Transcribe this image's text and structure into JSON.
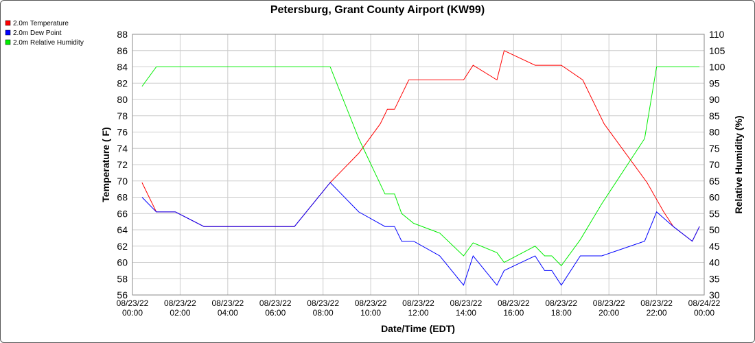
{
  "chart_data": {
    "type": "line",
    "title": "Petersburg, Grant County Airport (KW99)",
    "xlabel": "Date/Time (EDT)",
    "ylabel": "Temperature ( F)",
    "y2label": "Relative Humidity (%)",
    "xlim": [
      0,
      24
    ],
    "ylim": [
      56,
      88
    ],
    "y2lim": [
      30,
      110
    ],
    "grid": true,
    "legend_position": "top-left",
    "x_ticks": [
      {
        "x": 0,
        "date": "08/23/22",
        "time": "00:00"
      },
      {
        "x": 2,
        "date": "08/23/22",
        "time": "02:00"
      },
      {
        "x": 4,
        "date": "08/23/22",
        "time": "04:00"
      },
      {
        "x": 6,
        "date": "08/23/22",
        "time": "06:00"
      },
      {
        "x": 8,
        "date": "08/23/22",
        "time": "08:00"
      },
      {
        "x": 10,
        "date": "08/23/22",
        "time": "10:00"
      },
      {
        "x": 12,
        "date": "08/23/22",
        "time": "12:00"
      },
      {
        "x": 14,
        "date": "08/23/22",
        "time": "14:00"
      },
      {
        "x": 16,
        "date": "08/23/22",
        "time": "16:00"
      },
      {
        "x": 18,
        "date": "08/23/22",
        "time": "18:00"
      },
      {
        "x": 20,
        "date": "08/23/22",
        "time": "20:00"
      },
      {
        "x": 22,
        "date": "08/23/22",
        "time": "22:00"
      },
      {
        "x": 24,
        "date": "08/24/22",
        "time": "00:00"
      }
    ],
    "y_ticks": [
      56,
      58,
      60,
      62,
      64,
      66,
      68,
      70,
      72,
      74,
      76,
      78,
      80,
      82,
      84,
      86,
      88
    ],
    "y2_ticks": [
      30,
      35,
      40,
      45,
      50,
      55,
      60,
      65,
      70,
      75,
      80,
      85,
      90,
      95,
      100,
      105,
      110
    ],
    "series": [
      {
        "name": "2.0m Temperature",
        "color": "#ff0000",
        "axis": "left",
        "x": [
          0.4,
          1.0,
          1.8,
          3.0,
          6.8,
          8.3,
          9.5,
          10.4,
          10.7,
          11.0,
          11.6,
          13.9,
          14.3,
          15.3,
          15.6,
          16.9,
          18.0,
          18.9,
          19.8,
          20.7,
          21.6,
          22.3,
          22.7,
          23.5,
          23.8
        ],
        "y": [
          69.8,
          66.2,
          66.2,
          64.4,
          64.4,
          69.8,
          73.4,
          77.0,
          78.8,
          78.8,
          82.4,
          82.4,
          84.2,
          82.4,
          86.0,
          84.2,
          84.2,
          82.4,
          77.0,
          73.4,
          69.8,
          66.2,
          64.4,
          62.6,
          64.4
        ]
      },
      {
        "name": "2.0m Dew Point",
        "color": "#0000ff",
        "axis": "left",
        "x": [
          0.4,
          1.0,
          1.8,
          3.0,
          6.8,
          8.3,
          9.5,
          10.6,
          11.0,
          11.3,
          11.8,
          12.9,
          13.9,
          14.3,
          15.3,
          15.6,
          16.9,
          17.3,
          17.6,
          18.0,
          18.8,
          19.7,
          21.5,
          22.0,
          22.7,
          23.5,
          23.8
        ],
        "y": [
          68.0,
          66.2,
          66.2,
          64.4,
          64.4,
          69.8,
          66.2,
          64.4,
          64.4,
          62.6,
          62.6,
          60.8,
          57.2,
          60.8,
          57.2,
          59.0,
          60.8,
          59.0,
          59.0,
          57.2,
          60.8,
          60.8,
          62.6,
          66.2,
          64.4,
          62.6,
          64.4
        ]
      },
      {
        "name": "2.0m Relative Humidity",
        "color": "#00ee00",
        "axis": "right",
        "x": [
          0.4,
          1.0,
          2.0,
          8.3,
          9.5,
          10.6,
          11.0,
          11.3,
          11.8,
          12.9,
          13.9,
          14.3,
          15.3,
          15.6,
          16.9,
          17.3,
          17.6,
          18.0,
          18.8,
          19.7,
          21.5,
          22.0,
          23.8
        ],
        "y": [
          94,
          100,
          100,
          100,
          78,
          61,
          61,
          55,
          52,
          49,
          42,
          46,
          43,
          40,
          45,
          42,
          42,
          39,
          47,
          58,
          78,
          100,
          100
        ]
      }
    ]
  }
}
